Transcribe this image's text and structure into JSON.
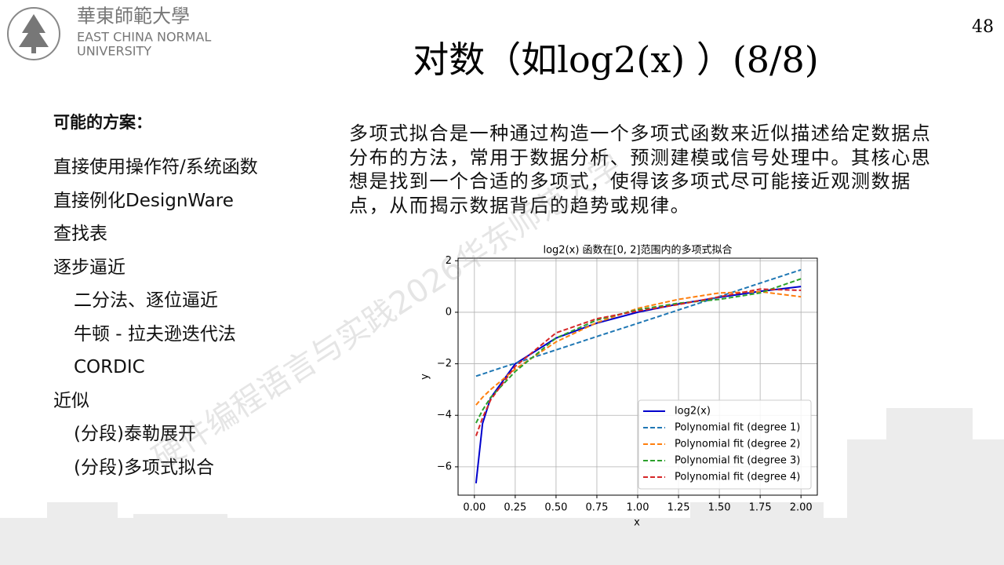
{
  "header": {
    "logo_cn": "華東師範大學",
    "logo_en_1": "EAST CHINA NORMAL",
    "logo_en_2": "UNIVERSITY",
    "page_number": "48"
  },
  "title": "对数（如log2(x) ）(8/8)",
  "left": {
    "heading": "可能的方案：",
    "items": [
      {
        "text": "直接使用操作符/系统函数",
        "sub": []
      },
      {
        "text": "直接例化DesignWare",
        "sub": []
      },
      {
        "text": "查找表",
        "sub": []
      },
      {
        "text": "逐步逼近",
        "sub": [
          "二分法、逐位逼近",
          "牛顿 - 拉夫逊迭代法",
          "CORDIC"
        ]
      },
      {
        "text": "近似",
        "sub": [
          "(分段)泰勒展开",
          "(分段)多项式拟合"
        ]
      }
    ]
  },
  "paragraph": "多项式拟合是一种通过构造一个多项式函数来近似描述给定数据点分布的方法，常用于数据分析、预测建模或信号处理中。其核心思想是找到一个合适的多项式，使得该多项式尽可能接近观测数据点，从而揭示数据背后的趋势或规律。",
  "watermark": "硬件编程语言与实践2026华东师范大学",
  "chart_data": {
    "type": "line",
    "title": "log2(x) 函数在[0, 2]范围内的多项式拟合",
    "x_label": "x",
    "y_label": "y",
    "x": [
      0.01,
      0.05,
      0.1,
      0.25,
      0.5,
      0.75,
      1,
      1.25,
      1.5,
      1.75,
      2
    ],
    "series": [
      {
        "name": "log2(x)",
        "color": "#0000cc",
        "dash": false,
        "values": [
          -6.64,
          -4.32,
          -3.32,
          -2,
          -1,
          -0.42,
          0,
          0.32,
          0.58,
          0.81,
          1
        ]
      },
      {
        "name": "Polynomial fit (degree 1)",
        "color": "#1f77b4",
        "dash": true,
        "values": [
          -2.48,
          -2.4,
          -2.29,
          -1.98,
          -1.46,
          -0.94,
          -0.43,
          0.09,
          0.61,
          1.13,
          1.65
        ]
      },
      {
        "name": "Polynomial fit (degree 2)",
        "color": "#ff7f0e",
        "dash": true,
        "values": [
          -3.6,
          -3.3,
          -3.0,
          -2.2,
          -1.15,
          -0.4,
          0.15,
          0.5,
          0.75,
          0.8,
          0.6
        ]
      },
      {
        "name": "Polynomial fit (degree 3)",
        "color": "#2ca02c",
        "dash": true,
        "values": [
          -4.3,
          -3.8,
          -3.3,
          -2.3,
          -1.0,
          -0.3,
          0.1,
          0.35,
          0.5,
          0.75,
          1.3
        ]
      },
      {
        "name": "Polynomial fit (degree 4)",
        "color": "#d62728",
        "dash": true,
        "values": [
          -4.8,
          -4.1,
          -3.4,
          -2.1,
          -0.8,
          -0.25,
          0.05,
          0.3,
          0.6,
          0.9,
          0.85
        ]
      }
    ],
    "xlim": [
      -0.1,
      2.1
    ],
    "ylim": [
      -7.1,
      2.1
    ],
    "xticks": [
      {
        "value": 0,
        "label": "0.00"
      },
      {
        "value": 0.25,
        "label": "0.25"
      },
      {
        "value": 0.5,
        "label": "0.50"
      },
      {
        "value": 0.75,
        "label": "0.75"
      },
      {
        "value": 1,
        "label": "1.00"
      },
      {
        "value": 1.25,
        "label": "1.25"
      },
      {
        "value": 1.5,
        "label": "1.50"
      },
      {
        "value": 1.75,
        "label": "1.75"
      },
      {
        "value": 2,
        "label": "2.00"
      }
    ],
    "yticks": [
      {
        "value": -6,
        "label": "−6"
      },
      {
        "value": -4,
        "label": "−4"
      },
      {
        "value": -2,
        "label": "−2"
      },
      0,
      2
    ],
    "grid": true,
    "legend": "lower right"
  }
}
